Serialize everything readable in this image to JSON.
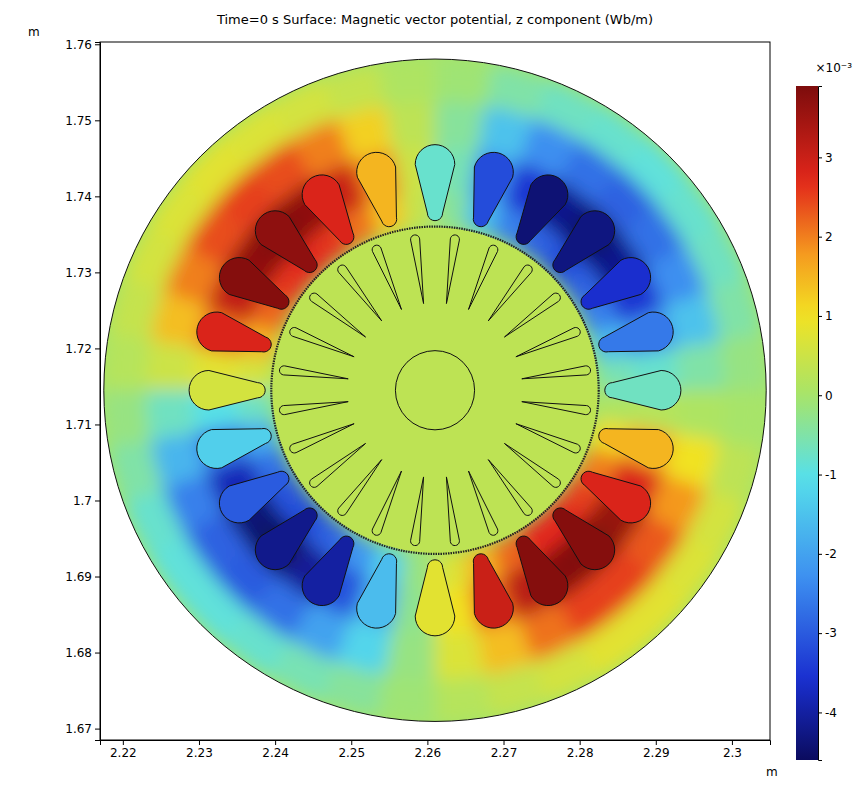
{
  "chart_data": {
    "type": "surface",
    "title": "Time=0 s   Surface: Magnetic vector potential, z component (Wb/m)",
    "xlabel": "m",
    "ylabel": "m",
    "xlim": [
      2.217,
      2.305
    ],
    "xticks": [
      2.22,
      2.23,
      2.24,
      2.25,
      2.26,
      2.27,
      2.28,
      2.29,
      2.3
    ],
    "ylim": [
      1.6685,
      1.7603
    ],
    "yticks": [
      1.67,
      1.68,
      1.69,
      1.7,
      1.71,
      1.72,
      1.73,
      1.74,
      1.75,
      1.76
    ],
    "center": [
      2.261,
      1.7145
    ],
    "stator": {
      "r_edges": [
        0.0216,
        0.026,
        0.032,
        0.038,
        0.0435
      ],
      "theta_edges": [
        0,
        10,
        20,
        30,
        40,
        50,
        60,
        70,
        80,
        90,
        100,
        110,
        120,
        130,
        140,
        150,
        160,
        170,
        180,
        190,
        200,
        210,
        220,
        230,
        240,
        250,
        260,
        270,
        280,
        290,
        300,
        310,
        320,
        330,
        340,
        350,
        360
      ],
      "values": [
        [
          -0.6,
          -1.6,
          -2.5,
          -2.9,
          -3.2,
          -2.9,
          -2.5,
          -1.6,
          -0.4,
          0.4,
          1.3,
          2.1,
          2.6,
          2.7,
          2.6,
          2.2,
          1.5,
          0.6,
          -0.7,
          -1.8,
          -2.7,
          -3.1,
          -3.2,
          -2.9,
          -2.2,
          -1.3,
          -0.2,
          0.7,
          1.5,
          2.2,
          2.7,
          2.7,
          2.5,
          2.0,
          1.1,
          0.1
        ],
        [
          -0.8,
          -2.3,
          -3.5,
          -4.2,
          -4.5,
          -4.2,
          -3.5,
          -2.3,
          -0.6,
          0.5,
          1.9,
          3.0,
          3.7,
          3.9,
          3.7,
          3.1,
          2.1,
          0.8,
          -1.0,
          -2.6,
          -3.8,
          -4.4,
          -4.6,
          -4.1,
          -3.1,
          -1.8,
          -0.3,
          1.0,
          2.2,
          3.2,
          3.8,
          3.9,
          3.6,
          2.8,
          1.6,
          0.2
        ],
        [
          -0.5,
          -1.5,
          -2.3,
          -2.7,
          -2.9,
          -2.7,
          -2.3,
          -1.5,
          -0.4,
          0.3,
          1.2,
          2.0,
          2.4,
          2.5,
          2.4,
          2.0,
          1.4,
          0.5,
          -0.7,
          -1.7,
          -2.5,
          -2.9,
          -3.0,
          -2.7,
          -2.0,
          -1.2,
          -0.2,
          0.7,
          1.4,
          2.1,
          2.5,
          2.5,
          2.3,
          1.8,
          1.0,
          0.1
        ],
        [
          -0.2,
          -0.5,
          -0.7,
          -0.8,
          -0.9,
          -0.8,
          -0.7,
          -0.5,
          -0.1,
          0.1,
          0.4,
          0.6,
          0.7,
          0.8,
          0.7,
          0.6,
          0.4,
          0.2,
          -0.2,
          -0.5,
          -0.8,
          -0.9,
          -0.9,
          -0.8,
          -0.6,
          -0.4,
          -0.1,
          0.2,
          0.4,
          0.6,
          0.8,
          0.8,
          0.7,
          0.6,
          0.3,
          0.0
        ]
      ]
    },
    "slots": {
      "angles": [
        0,
        15,
        30,
        45,
        60,
        75,
        90,
        105,
        120,
        135,
        150,
        165,
        180,
        195,
        210,
        225,
        240,
        255,
        270,
        285,
        300,
        315,
        330,
        345
      ],
      "values": [
        -0.7,
        -2.6,
        -3.6,
        -4.3,
        -4.4,
        -3.2,
        -0.8,
        1.5,
        2.8,
        3.7,
        3.8,
        2.8,
        0.6,
        -1.3,
        -3.0,
        -4.2,
        -4.0,
        -1.6,
        0.8,
        3.0,
        3.8,
        3.8,
        2.8,
        1.5
      ]
    },
    "rotor": {
      "value": 0.3
    },
    "colorbar": {
      "title": "×10⁻³",
      "range": [
        -4.6,
        3.9
      ],
      "ticks": [
        -4,
        -3,
        -2,
        -1,
        0,
        1,
        2,
        3
      ]
    }
  }
}
